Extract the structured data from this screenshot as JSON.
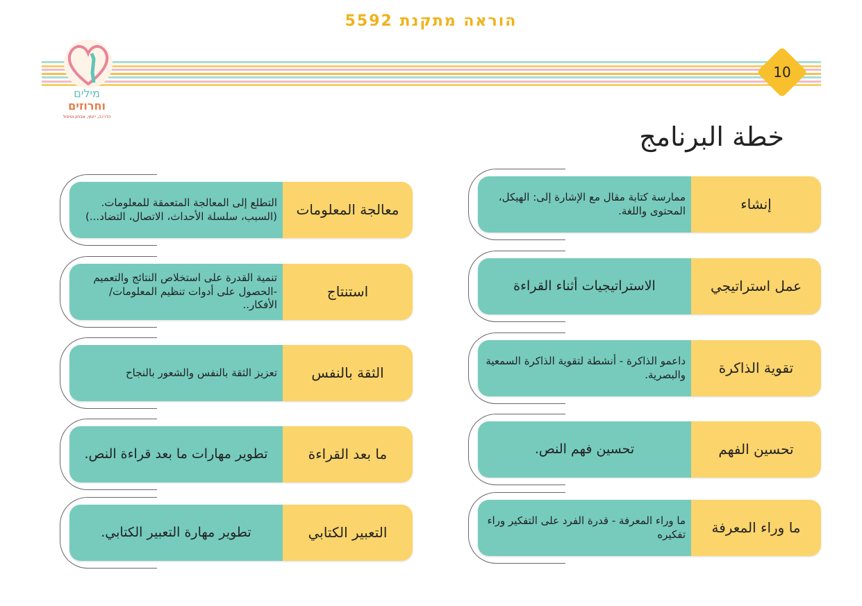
{
  "header": {
    "title": "הוראה מתקנת 5592"
  },
  "logo": {
    "line1": "מילים",
    "line2": "וחרוזים",
    "tagline": "הדרכה, ייעוץ, אבחון וטיפול"
  },
  "page_number": "10",
  "page_title": "خطة البرنامج",
  "colors": {
    "label_bg": "#fbd46b",
    "desc_bg": "#76cbbd",
    "header": "#f0b21b"
  },
  "right_column": [
    {
      "label": "إنشاء",
      "desc": "ممارسة كتابة مقال مع الإشارة إلى: الهيكل، المحتوى واللغة."
    },
    {
      "label": "عمل استراتيجي",
      "desc": "الاستراتيجيات أثناء القراءة"
    },
    {
      "label": "تقوية الذاكرة",
      "desc": "داعمو الذاكرة - أنشطة لتقوية الذاكرة السمعية والبصرية."
    },
    {
      "label": "تحسين الفهم",
      "desc": "تحسين فهم النص."
    },
    {
      "label": "ما وراء المعرفة",
      "desc": "ما وراء المعرفة - قدرة الفرد على التفكير وراء تفكيره"
    }
  ],
  "left_column": [
    {
      "label": "معالجة المعلومات",
      "desc": "التطلع إلى المعالجة المتعمقة للمعلومات. (السبب، سلسلة الأحداث، الاتصال، التضاد...)"
    },
    {
      "label": "استنتاج",
      "desc": "تنمية القدرة على استخلاص النتائج والتعميم -الحصول على أدوات تنظيم المعلومات/ الأفكار.."
    },
    {
      "label": "الثقة بالنفس",
      "desc": "تعزيز الثقة بالنفس والشعور بالنجاح"
    },
    {
      "label": "ما بعد القراءة",
      "desc": "تطوير مهارات ما بعد قراءة النص."
    },
    {
      "label": "التعبير الكتابي",
      "desc": "تطوير مهارة التعبير الكتابي."
    }
  ]
}
